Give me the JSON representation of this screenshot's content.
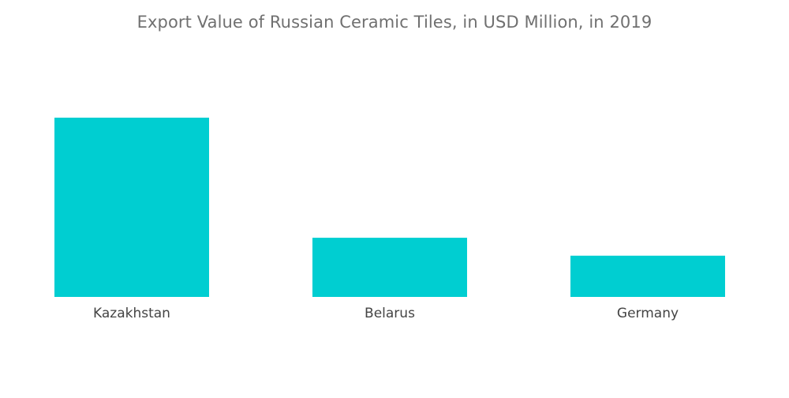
{
  "chart_data": {
    "type": "bar",
    "title": "Export Value of Russian Ceramic Tiles, in USD Million, in 2019",
    "categories": [
      "Kazakhstan",
      "Belarus",
      "Germany"
    ],
    "values": [
      100,
      33,
      23
    ],
    "ylim": [
      0,
      100
    ],
    "grid": false,
    "legend": "none",
    "bar_color": "#00CED1"
  }
}
